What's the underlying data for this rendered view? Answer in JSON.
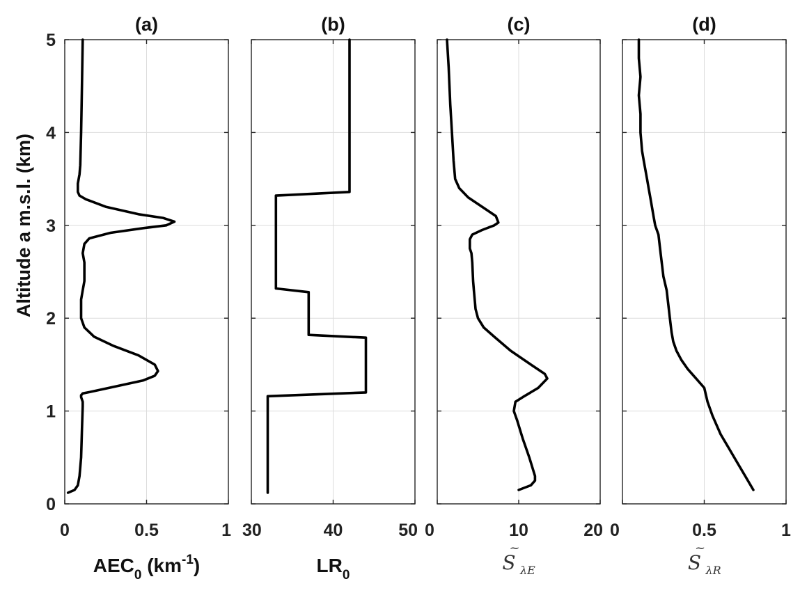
{
  "y_axis": {
    "label": "Altitude a m.s.l. (km)",
    "ylim": [
      0,
      5
    ],
    "ticks": [
      0,
      1,
      2,
      3,
      4,
      5
    ],
    "tick_labels": [
      "0",
      "1",
      "2",
      "3",
      "4",
      "5"
    ]
  },
  "panels": [
    {
      "title": "(a)",
      "xlabel": {
        "main": "AEC",
        "sub": "0",
        "unit": "(km",
        "sup": "-1",
        "close": ")"
      },
      "tick_labels": [
        "0",
        "0.5",
        "1"
      ]
    },
    {
      "title": "(b)",
      "xlabel": {
        "main": "LR",
        "sub": "0"
      },
      "tick_labels": [
        "30",
        "40",
        "50"
      ]
    },
    {
      "title": "(c)",
      "xlabel": {
        "main": "S",
        "accent": "~",
        "sub": "λE"
      },
      "tick_labels": [
        "0",
        "10",
        "20"
      ]
    },
    {
      "title": "(d)",
      "xlabel": {
        "main": "S",
        "accent": "~",
        "sub": "λR"
      },
      "tick_labels": [
        "0",
        "0.5",
        "1"
      ]
    }
  ],
  "chart_data": [
    {
      "type": "line",
      "title": "(a)",
      "xlabel": "AEC0 (km-1)",
      "ylabel": "Altitude a m.s.l. (km)",
      "xlim": [
        0,
        1
      ],
      "ylim": [
        0,
        5
      ],
      "xticks": [
        0,
        0.5,
        1
      ],
      "yticks": [
        0,
        1,
        2,
        3,
        4,
        5
      ],
      "grid": true,
      "series": [
        {
          "color": "#000000",
          "x": [
            0.02,
            0.06,
            0.08,
            0.09,
            0.1,
            0.105,
            0.11,
            0.11,
            0.1,
            0.1,
            0.11,
            0.14,
            0.22,
            0.35,
            0.48,
            0.55,
            0.57,
            0.55,
            0.45,
            0.3,
            0.18,
            0.12,
            0.1,
            0.1,
            0.11,
            0.12,
            0.12,
            0.12,
            0.11,
            0.12,
            0.15,
            0.28,
            0.48,
            0.62,
            0.67,
            0.6,
            0.45,
            0.25,
            0.13,
            0.09,
            0.08,
            0.08,
            0.08,
            0.09,
            0.095,
            0.1,
            0.105,
            0.11
          ],
          "y": [
            0.12,
            0.15,
            0.2,
            0.3,
            0.5,
            0.8,
            1.05,
            1.1,
            1.15,
            1.17,
            1.19,
            1.2,
            1.23,
            1.28,
            1.33,
            1.38,
            1.43,
            1.5,
            1.6,
            1.7,
            1.8,
            1.9,
            2.0,
            2.2,
            2.3,
            2.4,
            2.5,
            2.6,
            2.7,
            2.8,
            2.86,
            2.92,
            2.97,
            3.0,
            3.04,
            3.08,
            3.12,
            3.2,
            3.28,
            3.32,
            3.36,
            3.4,
            3.45,
            3.55,
            3.65,
            4.0,
            4.5,
            5.0
          ]
        }
      ]
    },
    {
      "type": "line",
      "title": "(b)",
      "xlabel": "LR0",
      "ylabel": "",
      "xlim": [
        30,
        50
      ],
      "ylim": [
        0,
        5
      ],
      "xticks": [
        30,
        40,
        50
      ],
      "yticks": [
        0,
        1,
        2,
        3,
        4,
        5
      ],
      "grid": true,
      "series": [
        {
          "color": "#000000",
          "x": [
            32,
            32,
            32,
            44,
            44,
            37,
            37,
            33,
            33,
            33,
            33,
            33,
            42,
            42,
            42
          ],
          "y": [
            0.12,
            1.15,
            1.16,
            1.2,
            1.79,
            1.82,
            2.28,
            2.32,
            2.6,
            2.8,
            3.1,
            3.32,
            3.36,
            4.0,
            5.0
          ]
        }
      ]
    },
    {
      "type": "line",
      "title": "(c)",
      "xlabel": "S̃λE",
      "ylabel": "",
      "xlim": [
        0,
        20
      ],
      "ylim": [
        0,
        5
      ],
      "xticks": [
        0,
        10,
        20
      ],
      "yticks": [
        0,
        1,
        2,
        3,
        4,
        5
      ],
      "grid": true,
      "series": [
        {
          "color": "#000000",
          "x": [
            10,
            11.5,
            12,
            12,
            11.3,
            10.5,
            9.8,
            9.4,
            9.6,
            10.5,
            12.4,
            13.5,
            13.2,
            11.5,
            9.0,
            7.0,
            5.7,
            5.0,
            4.7,
            4.5,
            4.4,
            4.3,
            4.2,
            4.0,
            4.0,
            4.3,
            5.5,
            7.0,
            7.5,
            7.2,
            5.5,
            3.8,
            2.7,
            2.2,
            2.0,
            1.8,
            1.6,
            1.4,
            1.2
          ],
          "y": [
            0.15,
            0.2,
            0.25,
            0.3,
            0.5,
            0.7,
            0.9,
            1.0,
            1.1,
            1.15,
            1.25,
            1.35,
            1.4,
            1.5,
            1.65,
            1.8,
            1.9,
            2.0,
            2.1,
            2.3,
            2.4,
            2.6,
            2.7,
            2.75,
            2.85,
            2.9,
            2.95,
            3.0,
            3.03,
            3.1,
            3.2,
            3.3,
            3.4,
            3.5,
            3.7,
            4.0,
            4.3,
            4.7,
            5.0
          ]
        }
      ]
    },
    {
      "type": "line",
      "title": "(d)",
      "xlabel": "S̃λR",
      "ylabel": "",
      "xlim": [
        0,
        1
      ],
      "ylim": [
        0,
        5
      ],
      "xticks": [
        0,
        0.5,
        1
      ],
      "yticks": [
        0,
        1,
        2,
        3,
        4,
        5
      ],
      "grid": true,
      "series": [
        {
          "color": "#000000",
          "x": [
            0.8,
            0.75,
            0.7,
            0.65,
            0.6,
            0.55,
            0.52,
            0.5,
            0.45,
            0.4,
            0.36,
            0.33,
            0.31,
            0.3,
            0.29,
            0.28,
            0.27,
            0.25,
            0.24,
            0.23,
            0.22,
            0.2,
            0.19,
            0.18,
            0.17,
            0.16,
            0.15,
            0.14,
            0.13,
            0.12,
            0.11,
            0.11,
            0.1,
            0.11,
            0.1,
            0.1
          ],
          "y": [
            0.15,
            0.3,
            0.45,
            0.6,
            0.75,
            0.95,
            1.1,
            1.25,
            1.35,
            1.45,
            1.55,
            1.65,
            1.75,
            1.85,
            2.0,
            2.15,
            2.3,
            2.45,
            2.6,
            2.75,
            2.9,
            3.0,
            3.1,
            3.2,
            3.3,
            3.4,
            3.5,
            3.6,
            3.7,
            3.8,
            4.0,
            4.2,
            4.4,
            4.6,
            4.8,
            5.0
          ]
        }
      ]
    }
  ]
}
